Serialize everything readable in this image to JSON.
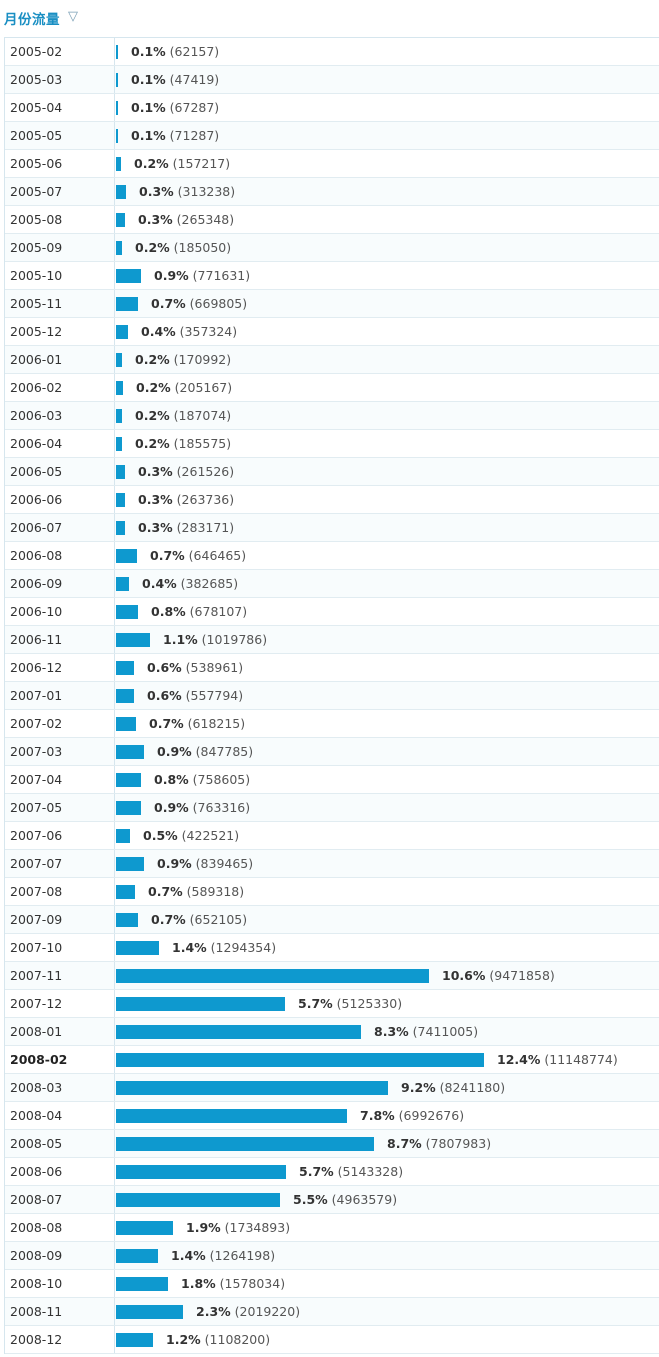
{
  "header": {
    "title": "月份流量",
    "toggle_icon": "▽"
  },
  "colors": {
    "bar": "#0e99cf",
    "title": "#1a8fc3"
  },
  "chart_data": {
    "type": "bar",
    "orientation": "horizontal",
    "title": "月份流量",
    "highlight": "2008-02",
    "rows": [
      {
        "month": "2005-02",
        "pct": "0.1%",
        "count": "(62157)",
        "value": 62157
      },
      {
        "month": "2005-03",
        "pct": "0.1%",
        "count": "(47419)",
        "value": 47419
      },
      {
        "month": "2005-04",
        "pct": "0.1%",
        "count": "(67287)",
        "value": 67287
      },
      {
        "month": "2005-05",
        "pct": "0.1%",
        "count": "(71287)",
        "value": 71287
      },
      {
        "month": "2005-06",
        "pct": "0.2%",
        "count": "(157217)",
        "value": 157217
      },
      {
        "month": "2005-07",
        "pct": "0.3%",
        "count": "(313238)",
        "value": 313238
      },
      {
        "month": "2005-08",
        "pct": "0.3%",
        "count": "(265348)",
        "value": 265348
      },
      {
        "month": "2005-09",
        "pct": "0.2%",
        "count": "(185050)",
        "value": 185050
      },
      {
        "month": "2005-10",
        "pct": "0.9%",
        "count": "(771631)",
        "value": 771631
      },
      {
        "month": "2005-11",
        "pct": "0.7%",
        "count": "(669805)",
        "value": 669805
      },
      {
        "month": "2005-12",
        "pct": "0.4%",
        "count": "(357324)",
        "value": 357324
      },
      {
        "month": "2006-01",
        "pct": "0.2%",
        "count": "(170992)",
        "value": 170992
      },
      {
        "month": "2006-02",
        "pct": "0.2%",
        "count": "(205167)",
        "value": 205167
      },
      {
        "month": "2006-03",
        "pct": "0.2%",
        "count": "(187074)",
        "value": 187074
      },
      {
        "month": "2006-04",
        "pct": "0.2%",
        "count": "(185575)",
        "value": 185575
      },
      {
        "month": "2006-05",
        "pct": "0.3%",
        "count": "(261526)",
        "value": 261526
      },
      {
        "month": "2006-06",
        "pct": "0.3%",
        "count": "(263736)",
        "value": 263736
      },
      {
        "month": "2006-07",
        "pct": "0.3%",
        "count": "(283171)",
        "value": 283171
      },
      {
        "month": "2006-08",
        "pct": "0.7%",
        "count": "(646465)",
        "value": 646465
      },
      {
        "month": "2006-09",
        "pct": "0.4%",
        "count": "(382685)",
        "value": 382685
      },
      {
        "month": "2006-10",
        "pct": "0.8%",
        "count": "(678107)",
        "value": 678107
      },
      {
        "month": "2006-11",
        "pct": "1.1%",
        "count": "(1019786)",
        "value": 1019786
      },
      {
        "month": "2006-12",
        "pct": "0.6%",
        "count": "(538961)",
        "value": 538961
      },
      {
        "month": "2007-01",
        "pct": "0.6%",
        "count": "(557794)",
        "value": 557794
      },
      {
        "month": "2007-02",
        "pct": "0.7%",
        "count": "(618215)",
        "value": 618215
      },
      {
        "month": "2007-03",
        "pct": "0.9%",
        "count": "(847785)",
        "value": 847785
      },
      {
        "month": "2007-04",
        "pct": "0.8%",
        "count": "(758605)",
        "value": 758605
      },
      {
        "month": "2007-05",
        "pct": "0.9%",
        "count": "(763316)",
        "value": 763316
      },
      {
        "month": "2007-06",
        "pct": "0.5%",
        "count": "(422521)",
        "value": 422521
      },
      {
        "month": "2007-07",
        "pct": "0.9%",
        "count": "(839465)",
        "value": 839465
      },
      {
        "month": "2007-08",
        "pct": "0.7%",
        "count": "(589318)",
        "value": 589318
      },
      {
        "month": "2007-09",
        "pct": "0.7%",
        "count": "(652105)",
        "value": 652105
      },
      {
        "month": "2007-10",
        "pct": "1.4%",
        "count": "(1294354)",
        "value": 1294354
      },
      {
        "month": "2007-11",
        "pct": "10.6%",
        "count": "(9471858)",
        "value": 9471858
      },
      {
        "month": "2007-12",
        "pct": "5.7%",
        "count": "(5125330)",
        "value": 5125330
      },
      {
        "month": "2008-01",
        "pct": "8.3%",
        "count": "(7411005)",
        "value": 7411005
      },
      {
        "month": "2008-02",
        "pct": "12.4%",
        "count": "(11148774)",
        "value": 11148774
      },
      {
        "month": "2008-03",
        "pct": "9.2%",
        "count": "(8241180)",
        "value": 8241180
      },
      {
        "month": "2008-04",
        "pct": "7.8%",
        "count": "(6992676)",
        "value": 6992676
      },
      {
        "month": "2008-05",
        "pct": "8.7%",
        "count": "(7807983)",
        "value": 7807983
      },
      {
        "month": "2008-06",
        "pct": "5.7%",
        "count": "(5143328)",
        "value": 5143328
      },
      {
        "month": "2008-07",
        "pct": "5.5%",
        "count": "(4963579)",
        "value": 4963579
      },
      {
        "month": "2008-08",
        "pct": "1.9%",
        "count": "(1734893)",
        "value": 1734893
      },
      {
        "month": "2008-09",
        "pct": "1.4%",
        "count": "(1264198)",
        "value": 1264198
      },
      {
        "month": "2008-10",
        "pct": "1.8%",
        "count": "(1578034)",
        "value": 1578034
      },
      {
        "month": "2008-11",
        "pct": "2.3%",
        "count": "(2019220)",
        "value": 2019220
      },
      {
        "month": "2008-12",
        "pct": "1.2%",
        "count": "(1108200)",
        "value": 1108200
      }
    ]
  }
}
